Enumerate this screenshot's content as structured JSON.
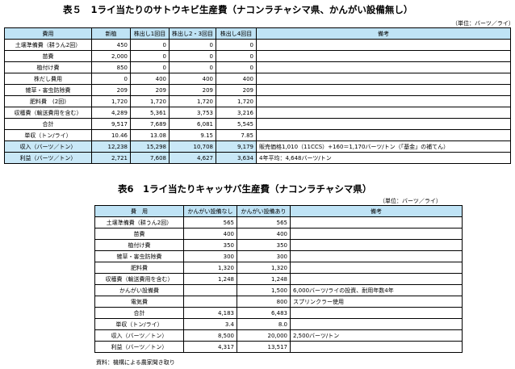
{
  "table5": {
    "title": "表５　1ライ当たりのサトウキビ生産費（ナコンラチャシマ県、かんがい設備無し）",
    "unit": "（単位：バーツ／ライ）",
    "headers": [
      "費用",
      "新植",
      "株出し1回目",
      "株出し2・3回目",
      "株出し4回目",
      "備考"
    ],
    "rows": [
      {
        "label": "土壌準備費（耕うん2回）",
        "values": [
          "450",
          "0",
          "0",
          "0"
        ],
        "remark": ""
      },
      {
        "label": "苗費",
        "values": [
          "2,000",
          "0",
          "0",
          "0"
        ],
        "remark": ""
      },
      {
        "label": "植付け費",
        "values": [
          "850",
          "0",
          "0",
          "0"
        ],
        "remark": ""
      },
      {
        "label": "株だし費用",
        "values": [
          "0",
          "400",
          "400",
          "400"
        ],
        "remark": ""
      },
      {
        "label": "雑草・害虫防除費",
        "values": [
          "209",
          "209",
          "209",
          "209"
        ],
        "remark": ""
      },
      {
        "label": "肥料費　(2回)",
        "values": [
          "1,720",
          "1,720",
          "1,720",
          "1,720"
        ],
        "remark": ""
      },
      {
        "label": "収穫費（輸送費用を含む）",
        "values": [
          "4,289",
          "5,361",
          "3,753",
          "3,216"
        ],
        "remark": ""
      },
      {
        "label": "合計",
        "values": [
          "9,517",
          "7,689",
          "6,081",
          "5,545"
        ],
        "remark": ""
      },
      {
        "label": "単収（トン/ライ）",
        "values": [
          "10.46",
          "13.08",
          "9.15",
          "7.85"
        ],
        "remark": ""
      },
      {
        "label": "収入（バーツ／トン）",
        "values": [
          "12,238",
          "15,298",
          "10,708",
          "9,179"
        ],
        "remark": "販売価格1,010（11CCS）+160＝1,170バーツ/トン（「基金」の補てん）",
        "highlight": true
      },
      {
        "label": "利益（バーツ／トン）",
        "values": [
          "2,721",
          "7,608",
          "4,627",
          "3,634"
        ],
        "remark": "4年平均：4,648バーツ/トン",
        "highlight": true
      }
    ]
  },
  "table6": {
    "title": "表6　1ライ当たりキャッサバ生産費（ナコンラチャシマ県）",
    "unit": "（単位：バーツ／ライ）",
    "headers": [
      "費　用",
      "かんがい設備なし",
      "かんがい設備あり",
      "備考"
    ],
    "rows": [
      {
        "label": "土壌準備費（耕うん2回）",
        "values": [
          "565",
          "565"
        ],
        "remark": ""
      },
      {
        "label": "苗費",
        "values": [
          "400",
          "400"
        ],
        "remark": ""
      },
      {
        "label": "植付け費",
        "values": [
          "350",
          "350"
        ],
        "remark": ""
      },
      {
        "label": "雑草・害虫防除費",
        "values": [
          "300",
          "300"
        ],
        "remark": ""
      },
      {
        "label": "肥料費",
        "values": [
          "1,320",
          "1,320"
        ],
        "remark": ""
      },
      {
        "label": "収穫費（輸送費用を含む）",
        "values": [
          "1,248",
          "1,248"
        ],
        "remark": ""
      },
      {
        "label": "かんがい設備費",
        "values": [
          "",
          "1,500"
        ],
        "remark": "6,000バーツ/ライの投資、耐用年数4年"
      },
      {
        "label": "電気費",
        "values": [
          "",
          "800"
        ],
        "remark": "スプリンクラー使用"
      },
      {
        "label": "合計",
        "values": [
          "4,183",
          "6,483"
        ],
        "remark": ""
      },
      {
        "label": "単収（トン/ライ）",
        "values": [
          "3.4",
          "8.0"
        ],
        "remark": ""
      },
      {
        "label": "収入（バーツ／トン）",
        "values": [
          "8,500",
          "20,000"
        ],
        "remark": "2,500バーツ/トン"
      },
      {
        "label": "利益（バーツ／トン）",
        "values": [
          "4,317",
          "13,517"
        ],
        "remark": ""
      }
    ],
    "source": "資料：機構による農家聞き取り"
  }
}
